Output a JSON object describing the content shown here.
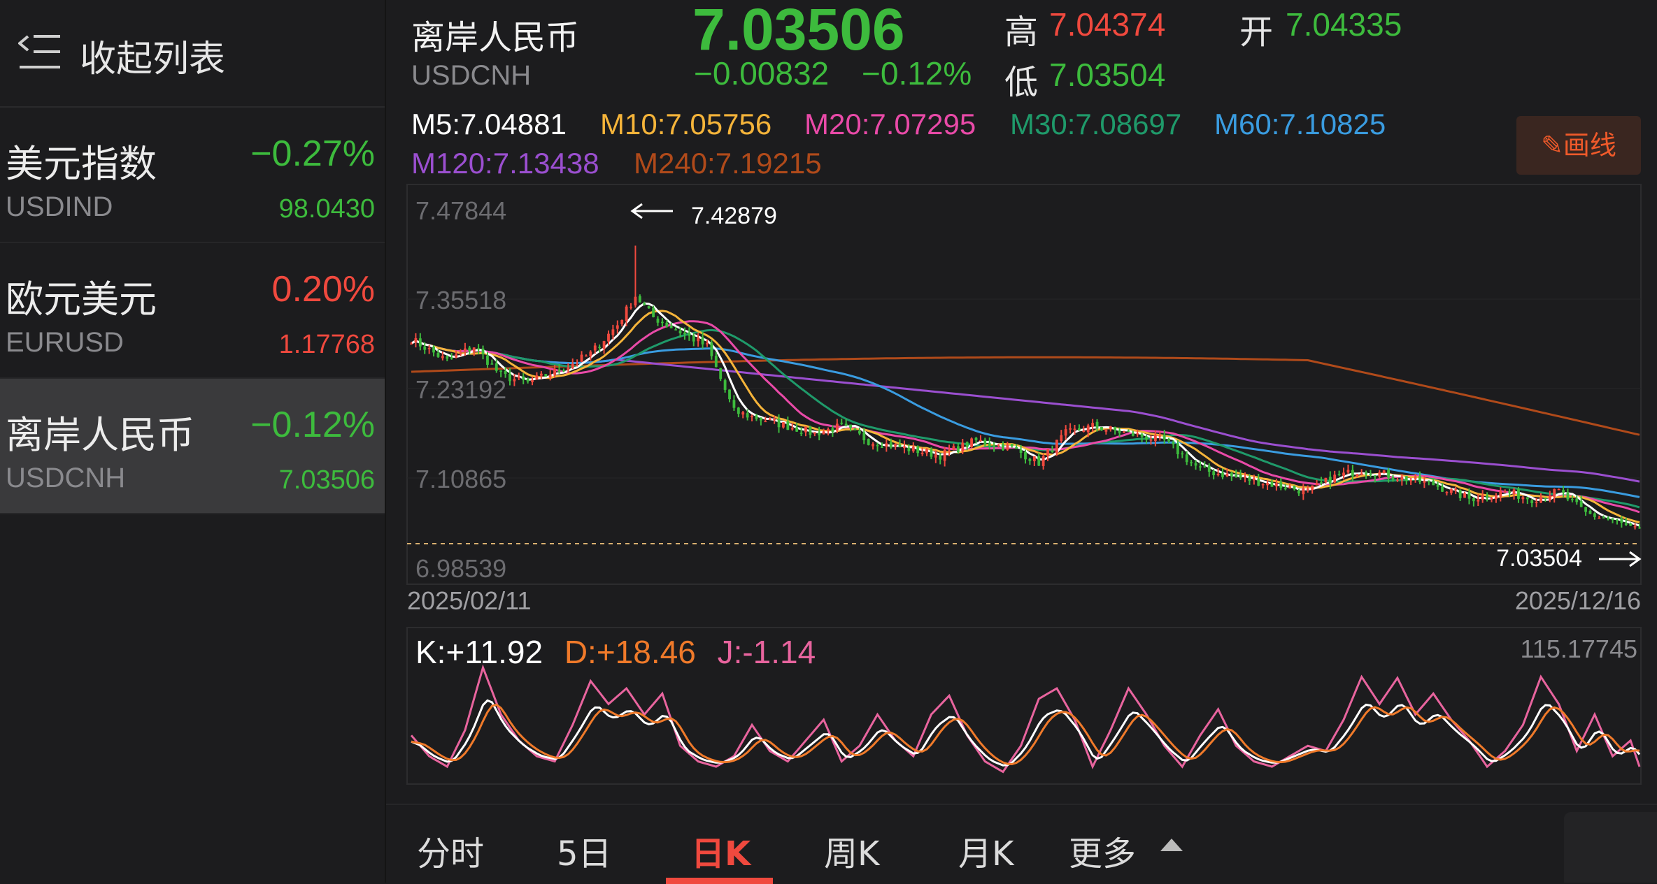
{
  "sidebar": {
    "collapse_label": "收起列表",
    "items": [
      {
        "name": "美元指数",
        "code": "USDIND",
        "change_pct": "−0.27%",
        "price": "98.0430",
        "trend": "down"
      },
      {
        "name": "欧元美元",
        "code": "EURUSD",
        "change_pct": "0.20%",
        "price": "1.17768",
        "trend": "up"
      },
      {
        "name": "离岸人民币",
        "code": "USDCNH",
        "change_pct": "−0.12%",
        "price": "7.03506",
        "trend": "down",
        "active": true
      }
    ]
  },
  "header": {
    "name": "离岸人民币",
    "code": "USDCNH",
    "price": "7.03506",
    "change": "−0.00832",
    "change_pct": "−0.12%",
    "high_label": "高",
    "high": "7.04374",
    "low_label": "低",
    "low": "7.03504",
    "open_label": "开",
    "open": "7.04335"
  },
  "ma": {
    "m5": "M5:7.04881",
    "m10": "M10:7.05756",
    "m20": "M20:7.07295",
    "m30": "M30:7.08697",
    "m60": "M60:7.10825",
    "m120": "M120:7.13438",
    "m240": "M240:7.19215"
  },
  "draw_button": "画线",
  "colors": {
    "up": "#f0493e",
    "down": "#3dbb3d",
    "m5": "#ffffff",
    "m10": "#f5b43a",
    "m20": "#e94aa8",
    "m30": "#1f9a6a",
    "m60": "#3a9ce0",
    "m120": "#9b4fd0",
    "m240": "#b04a1a",
    "k": "#ffffff",
    "d": "#f07a2a",
    "j": "#e8649e"
  },
  "chart_data": [
    {
      "type": "candlestick",
      "y_ticks": [
        "7.47844",
        "7.35518",
        "7.23192",
        "7.10865",
        "6.98539"
      ],
      "ylim": [
        6.98539,
        7.47844
      ],
      "x_start": "2025/02/11",
      "x_end": "2025/12/16",
      "annotations": {
        "max": "7.42879",
        "min": "7.03504"
      },
      "close_keypoints": [
        [
          0,
          7.3
        ],
        [
          8,
          7.27
        ],
        [
          14,
          7.29
        ],
        [
          20,
          7.25
        ],
        [
          26,
          7.24
        ],
        [
          34,
          7.26
        ],
        [
          40,
          7.28
        ],
        [
          46,
          7.32
        ],
        [
          50,
          7.36
        ],
        [
          54,
          7.33
        ],
        [
          60,
          7.31
        ],
        [
          66,
          7.29
        ],
        [
          72,
          7.2
        ],
        [
          78,
          7.19
        ],
        [
          84,
          7.18
        ],
        [
          90,
          7.17
        ],
        [
          96,
          7.18
        ],
        [
          102,
          7.16
        ],
        [
          110,
          7.15
        ],
        [
          118,
          7.14
        ],
        [
          126,
          7.16
        ],
        [
          134,
          7.15
        ],
        [
          140,
          7.13
        ],
        [
          146,
          7.17
        ],
        [
          152,
          7.18
        ],
        [
          160,
          7.17
        ],
        [
          168,
          7.16
        ],
        [
          176,
          7.12
        ],
        [
          184,
          7.11
        ],
        [
          192,
          7.1
        ],
        [
          200,
          7.09
        ],
        [
          206,
          7.11
        ],
        [
          212,
          7.12
        ],
        [
          220,
          7.11
        ],
        [
          228,
          7.1
        ],
        [
          236,
          7.08
        ],
        [
          244,
          7.09
        ],
        [
          250,
          7.08
        ],
        [
          256,
          7.09
        ],
        [
          262,
          7.06
        ],
        [
          268,
          7.05
        ],
        [
          272,
          7.04
        ],
        [
          274,
          7.035
        ]
      ]
    },
    {
      "type": "line",
      "name": "KDJ",
      "series": [
        {
          "name": "K",
          "value": "K:+11.92"
        },
        {
          "name": "D",
          "value": "D:+18.46"
        },
        {
          "name": "J",
          "value": "J:-1.14"
        }
      ],
      "max_label": "115.17745",
      "j_keypoints": [
        [
          0,
          40
        ],
        [
          4,
          20
        ],
        [
          8,
          10
        ],
        [
          12,
          45
        ],
        [
          16,
          105
        ],
        [
          20,
          60
        ],
        [
          24,
          35
        ],
        [
          28,
          20
        ],
        [
          32,
          15
        ],
        [
          36,
          50
        ],
        [
          40,
          92
        ],
        [
          44,
          70
        ],
        [
          48,
          85
        ],
        [
          52,
          60
        ],
        [
          56,
          80
        ],
        [
          60,
          30
        ],
        [
          64,
          15
        ],
        [
          68,
          10
        ],
        [
          72,
          20
        ],
        [
          76,
          50
        ],
        [
          80,
          25
        ],
        [
          84,
          15
        ],
        [
          88,
          35
        ],
        [
          92,
          55
        ],
        [
          96,
          15
        ],
        [
          100,
          30
        ],
        [
          104,
          60
        ],
        [
          108,
          35
        ],
        [
          112,
          20
        ],
        [
          116,
          60
        ],
        [
          120,
          78
        ],
        [
          124,
          40
        ],
        [
          128,
          15
        ],
        [
          132,
          5
        ],
        [
          136,
          30
        ],
        [
          140,
          75
        ],
        [
          144,
          85
        ],
        [
          148,
          55
        ],
        [
          152,
          10
        ],
        [
          156,
          45
        ],
        [
          160,
          85
        ],
        [
          164,
          60
        ],
        [
          168,
          30
        ],
        [
          172,
          10
        ],
        [
          176,
          40
        ],
        [
          180,
          65
        ],
        [
          184,
          30
        ],
        [
          188,
          15
        ],
        [
          192,
          10
        ],
        [
          196,
          20
        ],
        [
          200,
          30
        ],
        [
          204,
          25
        ],
        [
          208,
          55
        ],
        [
          212,
          96
        ],
        [
          216,
          70
        ],
        [
          220,
          95
        ],
        [
          224,
          60
        ],
        [
          228,
          80
        ],
        [
          232,
          55
        ],
        [
          236,
          35
        ],
        [
          240,
          10
        ],
        [
          244,
          25
        ],
        [
          248,
          50
        ],
        [
          252,
          96
        ],
        [
          256,
          70
        ],
        [
          260,
          25
        ],
        [
          264,
          60
        ],
        [
          268,
          20
        ],
        [
          272,
          35
        ],
        [
          274,
          10
        ]
      ]
    }
  ],
  "tabs": [
    "分时",
    "5日",
    "日K",
    "周K",
    "月K",
    "更多"
  ],
  "active_tab": 2
}
